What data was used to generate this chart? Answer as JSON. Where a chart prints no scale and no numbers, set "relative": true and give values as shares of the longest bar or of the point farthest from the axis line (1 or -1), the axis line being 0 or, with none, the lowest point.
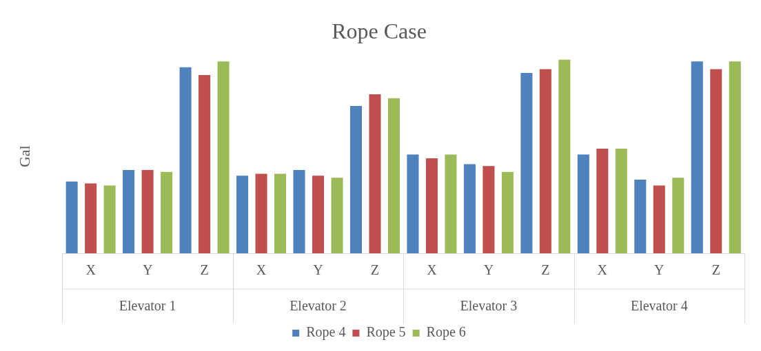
{
  "chart_data": {
    "type": "bar",
    "title": "Rope Case",
    "ylabel": "Gal",
    "relative": true,
    "legend": "bottom",
    "categories": [
      "X",
      "Y",
      "Z",
      "X",
      "Y",
      "Z",
      "X",
      "Y",
      "Z",
      "X",
      "Y",
      "Z"
    ],
    "annotations": [
      "Elevator 1",
      "Elevator 2",
      "Elevator 3",
      "Elevator 4"
    ],
    "series": [
      {
        "name": "Rope 4",
        "color": "#4f81bd",
        "values": [
          0.37,
          0.43,
          0.96,
          0.4,
          0.43,
          0.76,
          0.51,
          0.46,
          0.93,
          0.51,
          0.38,
          0.99
        ]
      },
      {
        "name": "Rope 5",
        "color": "#c0504d",
        "values": [
          0.36,
          0.43,
          0.92,
          0.41,
          0.4,
          0.82,
          0.49,
          0.45,
          0.95,
          0.54,
          0.35,
          0.95
        ]
      },
      {
        "name": "Rope 6",
        "color": "#9bbb59",
        "values": [
          0.35,
          0.42,
          0.99,
          0.41,
          0.39,
          0.8,
          0.51,
          0.42,
          1,
          0.54,
          0.39,
          0.99
        ]
      }
    ]
  }
}
